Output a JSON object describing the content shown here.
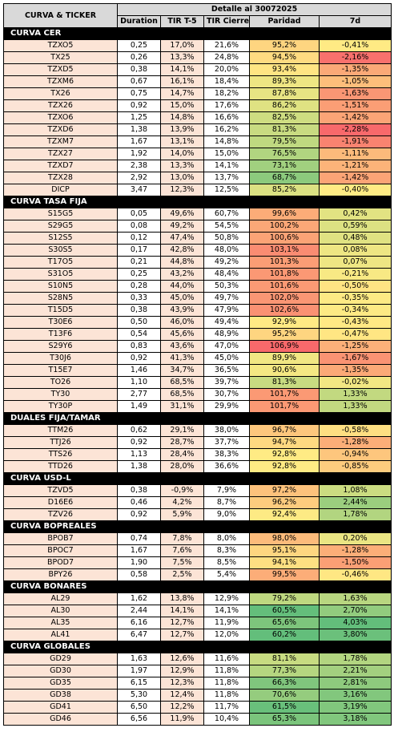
{
  "header": {
    "ticker": "CURVA & TICKER",
    "detail": "Detalle al 30072025",
    "columns": [
      "Duration",
      "TIR T-5",
      "TIR Cierre",
      "Paridad",
      "7d"
    ]
  },
  "sections": [
    {
      "title": "CURVA CER",
      "rows": [
        [
          "TZXO5",
          "0,25",
          "17,0%",
          "21,6%",
          "95,2%",
          "-0,41%"
        ],
        [
          "TX25",
          "0,26",
          "13,3%",
          "24,8%",
          "94,5%",
          "-2,16%"
        ],
        [
          "TZXD5",
          "0,38",
          "14,1%",
          "20,0%",
          "93,4%",
          "-1,35%"
        ],
        [
          "TZXM6",
          "0,67",
          "16,1%",
          "18,4%",
          "89,3%",
          "-1,05%"
        ],
        [
          "TX26",
          "0,75",
          "14,7%",
          "18,2%",
          "87,8%",
          "-1,63%"
        ],
        [
          "TZX26",
          "0,92",
          "15,0%",
          "17,6%",
          "86,2%",
          "-1,51%"
        ],
        [
          "TZXO6",
          "1,25",
          "14,8%",
          "16,6%",
          "82,5%",
          "-1,42%"
        ],
        [
          "TZXD6",
          "1,38",
          "13,9%",
          "16,2%",
          "81,3%",
          "-2,28%"
        ],
        [
          "TZXM7",
          "1,67",
          "13,1%",
          "14,8%",
          "79,5%",
          "-1,91%"
        ],
        [
          "TZX27",
          "1,92",
          "14,0%",
          "15,0%",
          "76,5%",
          "-1,11%"
        ],
        [
          "TZXD7",
          "2,38",
          "13,3%",
          "14,1%",
          "73,1%",
          "-1,21%"
        ],
        [
          "TZX28",
          "2,92",
          "13,0%",
          "13,7%",
          "68,7%",
          "-1,42%"
        ],
        [
          "DICP",
          "3,47",
          "12,3%",
          "12,5%",
          "85,2%",
          "-0,40%"
        ]
      ]
    },
    {
      "title": "CURVA TASA FIJA",
      "rows": [
        [
          "S15G5",
          "0,05",
          "49,6%",
          "60,7%",
          "99,6%",
          "0,42%"
        ],
        [
          "S29G5",
          "0,08",
          "49,2%",
          "54,5%",
          "100,2%",
          "0,59%"
        ],
        [
          "S12S5",
          "0,12",
          "47,4%",
          "50,8%",
          "100,6%",
          "0,48%"
        ],
        [
          "S30S5",
          "0,17",
          "42,8%",
          "48,0%",
          "103,1%",
          "0,08%"
        ],
        [
          "T17O5",
          "0,21",
          "44,8%",
          "49,2%",
          "101,3%",
          "0,07%"
        ],
        [
          "S31O5",
          "0,25",
          "43,2%",
          "48,4%",
          "101,8%",
          "-0,21%"
        ],
        [
          "S10N5",
          "0,28",
          "44,0%",
          "50,3%",
          "101,6%",
          "-0,50%"
        ],
        [
          "S28N5",
          "0,33",
          "45,0%",
          "49,7%",
          "102,0%",
          "-0,35%"
        ],
        [
          "T15D5",
          "0,38",
          "43,9%",
          "47,9%",
          "102,6%",
          "-0,34%"
        ],
        [
          "T30E6",
          "0,50",
          "46,0%",
          "49,4%",
          "92,9%",
          "-0,43%"
        ],
        [
          "T13F6",
          "0,54",
          "45,6%",
          "48,9%",
          "95,2%",
          "-0,47%"
        ],
        [
          "S29Y6",
          "0,83",
          "43,6%",
          "47,0%",
          "106,9%",
          "-1,25%"
        ],
        [
          "T30J6",
          "0,92",
          "41,3%",
          "45,0%",
          "89,9%",
          "-1,67%"
        ],
        [
          "T15E7",
          "1,46",
          "34,7%",
          "36,5%",
          "90,6%",
          "-1,35%"
        ],
        [
          "TO26",
          "1,10",
          "68,5%",
          "39,7%",
          "81,3%",
          "-0,02%"
        ],
        [
          "TY30",
          "2,77",
          "68,5%",
          "30,7%",
          "101,7%",
          "1,33%"
        ],
        [
          "TY30P",
          "1,49",
          "31,1%",
          "29,9%",
          "101,7%",
          "1,33%"
        ]
      ]
    },
    {
      "title": "DUALES FIJA/TAMAR",
      "rows": [
        [
          "TTM26",
          "0,62",
          "29,1%",
          "38,0%",
          "96,7%",
          "-0,58%"
        ],
        [
          "TTJ26",
          "0,92",
          "28,7%",
          "37,7%",
          "94,7%",
          "-1,28%"
        ],
        [
          "TTS26",
          "1,13",
          "28,4%",
          "38,3%",
          "92,8%",
          "-0,94%"
        ],
        [
          "TTD26",
          "1,38",
          "28,0%",
          "36,6%",
          "92,8%",
          "-0,85%"
        ]
      ]
    },
    {
      "title": "CURVA USD-L",
      "rows": [
        [
          "TZVD5",
          "0,38",
          "-0,9%",
          "7,9%",
          "97,2%",
          "1,08%"
        ],
        [
          "D16E6",
          "0,46",
          "4,2%",
          "8,7%",
          "96,2%",
          "2,44%"
        ],
        [
          "TZV26",
          "0,92",
          "5,9%",
          "9,0%",
          "92,4%",
          "1,78%"
        ]
      ]
    },
    {
      "title": "CURVA BOPREALES",
      "rows": [
        [
          "BPOB7",
          "0,74",
          "7,8%",
          "8,0%",
          "98,0%",
          "0,20%"
        ],
        [
          "BPOC7",
          "1,67",
          "7,6%",
          "8,3%",
          "95,1%",
          "-1,28%"
        ],
        [
          "BPOD7",
          "1,90",
          "7,5%",
          "8,5%",
          "94,1%",
          "-1,50%"
        ],
        [
          "BPY26",
          "0,58",
          "2,5%",
          "5,4%",
          "99,5%",
          "-0,46%"
        ]
      ]
    },
    {
      "title": "CURVA BONARES",
      "rows": [
        [
          "AL29",
          "1,62",
          "13,8%",
          "12,9%",
          "79,2%",
          "1,63%"
        ],
        [
          "AL30",
          "2,44",
          "14,1%",
          "14,1%",
          "60,5%",
          "2,70%"
        ],
        [
          "AL35",
          "6,16",
          "12,7%",
          "11,9%",
          "65,6%",
          "4,03%"
        ],
        [
          "AL41",
          "6,47",
          "12,7%",
          "12,0%",
          "60,2%",
          "3,80%"
        ]
      ]
    },
    {
      "title": "CURVA GLOBALES",
      "rows": [
        [
          "GD29",
          "1,63",
          "12,6%",
          "11,6%",
          "81,1%",
          "1,78%"
        ],
        [
          "GD30",
          "1,97",
          "12,9%",
          "11,8%",
          "77,3%",
          "2,21%"
        ],
        [
          "GD35",
          "6,15",
          "12,3%",
          "11,8%",
          "66,3%",
          "2,81%"
        ],
        [
          "GD38",
          "5,30",
          "12,4%",
          "11,8%",
          "70,6%",
          "3,16%"
        ],
        [
          "GD41",
          "6,50",
          "12,2%",
          "11,7%",
          "61,5%",
          "3,19%"
        ],
        [
          "GD46",
          "6,56",
          "11,9%",
          "10,4%",
          "65,3%",
          "3,18%"
        ]
      ]
    }
  ]
}
